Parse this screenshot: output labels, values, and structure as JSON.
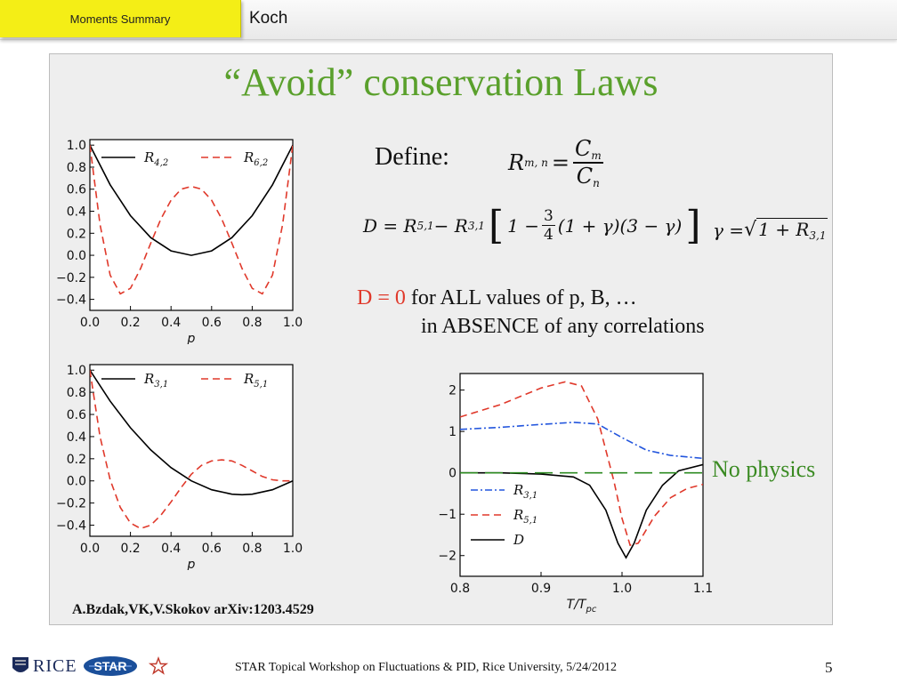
{
  "header": {
    "section_tab": "Moments Summary",
    "author": "Koch"
  },
  "slide": {
    "title": "“Avoid” conservation Laws",
    "define_label": "Define:",
    "ratio_formula": {
      "lhs": "R",
      "lhs_sub": "m, n",
      "num": "C",
      "num_sub": "m",
      "den": "C",
      "den_sub": "n"
    },
    "d_formula": {
      "text_a": "D = R",
      "sub_a": "5,1",
      "text_b": " − R",
      "sub_b": "3,1",
      "text_c": "1 −",
      "frac_num": "3",
      "frac_den": "4",
      "text_d": "(1 + γ)(3 − γ)"
    },
    "gamma_formula": {
      "lhs": "γ = ",
      "inside": "1 + R",
      "inside_sub": "3,1"
    },
    "statement": {
      "red_part": "D = 0",
      "line1_rest": " for ALL values of p, B, …",
      "line2": "in ABSENCE of any correlations"
    },
    "no_physics": "No physics",
    "citation": "A.Bzdak,VK,V.Skokov arXiv:1203.4529"
  },
  "footer": {
    "text": "STAR Topical Workshop on Fluctuations & PID, Rice University, 5/24/2012",
    "page_number": "5",
    "rice_logo": "RICE",
    "star_logo": "STAR"
  },
  "colors": {
    "title_green": "#5aa02c",
    "red_curve": "#e0392b",
    "blue_curve": "#2255dd",
    "green_dash": "#2e8b22",
    "tab_yellow": "#f4ee16"
  },
  "chart_data": [
    {
      "type": "line",
      "xlabel": "p",
      "xlim": [
        0.0,
        1.0
      ],
      "ylim": [
        -0.5,
        1.05
      ],
      "xticks": [
        "0.0",
        "0.2",
        "0.4",
        "0.6",
        "0.8",
        "1.0"
      ],
      "yticks": [
        "1.0",
        "0.8",
        "0.6",
        "0.4",
        "0.2",
        "0.0",
        "−0.2",
        "−0.4"
      ],
      "series": [
        {
          "name": "R",
          "name_sub": "4,2",
          "style": "solid",
          "color": "#000000",
          "x": [
            0.0,
            0.1,
            0.2,
            0.3,
            0.4,
            0.5,
            0.6,
            0.7,
            0.8,
            0.9,
            1.0
          ],
          "y": [
            1.0,
            0.64,
            0.36,
            0.16,
            0.04,
            0.0,
            0.04,
            0.16,
            0.36,
            0.64,
            1.0
          ]
        },
        {
          "name": "R",
          "name_sub": "6,2",
          "style": "dashed",
          "color": "#e0392b",
          "x": [
            0.0,
            0.05,
            0.1,
            0.15,
            0.2,
            0.25,
            0.3,
            0.35,
            0.4,
            0.45,
            0.5,
            0.55,
            0.6,
            0.65,
            0.7,
            0.75,
            0.8,
            0.85,
            0.9,
            0.95,
            1.0
          ],
          "y": [
            1.0,
            0.28,
            -0.18,
            -0.35,
            -0.3,
            -0.12,
            0.11,
            0.33,
            0.5,
            0.6,
            0.625,
            0.6,
            0.5,
            0.33,
            0.11,
            -0.12,
            -0.3,
            -0.35,
            -0.18,
            0.28,
            1.0
          ]
        }
      ]
    },
    {
      "type": "line",
      "xlabel": "p",
      "xlim": [
        0.0,
        1.0
      ],
      "ylim": [
        -0.5,
        1.05
      ],
      "xticks": [
        "0.0",
        "0.2",
        "0.4",
        "0.6",
        "0.8",
        "1.0"
      ],
      "yticks": [
        "1.0",
        "0.8",
        "0.6",
        "0.4",
        "0.2",
        "0.0",
        "−0.2",
        "−0.4"
      ],
      "series": [
        {
          "name": "R",
          "name_sub": "3,1",
          "style": "solid",
          "color": "#000000",
          "x": [
            0.0,
            0.1,
            0.2,
            0.3,
            0.4,
            0.5,
            0.6,
            0.7,
            0.75,
            0.8,
            0.9,
            1.0
          ],
          "y": [
            1.0,
            0.72,
            0.48,
            0.28,
            0.12,
            0.0,
            -0.08,
            -0.12,
            -0.125,
            -0.12,
            -0.08,
            0.0
          ]
        },
        {
          "name": "R",
          "name_sub": "5,1",
          "style": "dashed",
          "color": "#e0392b",
          "x": [
            0.0,
            0.05,
            0.1,
            0.15,
            0.2,
            0.25,
            0.3,
            0.35,
            0.4,
            0.45,
            0.5,
            0.55,
            0.6,
            0.65,
            0.7,
            0.75,
            0.8,
            0.85,
            0.9,
            0.95,
            1.0
          ],
          "y": [
            1.0,
            0.4,
            0.01,
            -0.24,
            -0.38,
            -0.43,
            -0.4,
            -0.31,
            -0.19,
            -0.06,
            0.06,
            0.14,
            0.18,
            0.19,
            0.18,
            0.14,
            0.09,
            0.04,
            0.01,
            0.0,
            0.0
          ]
        }
      ]
    },
    {
      "type": "line",
      "xlabel": "T/T",
      "xlabel_sub": "pc",
      "xlim": [
        0.8,
        1.1
      ],
      "ylim": [
        -2.5,
        2.4
      ],
      "xticks": [
        "0.8",
        "0.9",
        "1.0",
        "1.1"
      ],
      "yticks": [
        "2",
        "1",
        "0",
        "−1",
        "−2"
      ],
      "series": [
        {
          "name": "R",
          "name_sub": "3,1",
          "style": "dashdot",
          "color": "#2255dd",
          "x": [
            0.8,
            0.85,
            0.9,
            0.94,
            0.97,
            1.0,
            1.03,
            1.06,
            1.1
          ],
          "y": [
            1.05,
            1.1,
            1.17,
            1.22,
            1.18,
            0.85,
            0.55,
            0.42,
            0.35
          ]
        },
        {
          "name": "R",
          "name_sub": "5,1",
          "style": "dashed",
          "color": "#e0392b",
          "x": [
            0.8,
            0.85,
            0.9,
            0.93,
            0.95,
            0.97,
            0.99,
            1.0,
            1.01,
            1.02,
            1.04,
            1.06,
            1.08,
            1.1
          ],
          "y": [
            1.35,
            1.65,
            2.05,
            2.2,
            2.1,
            1.3,
            -0.2,
            -1.1,
            -1.75,
            -1.7,
            -1.05,
            -0.6,
            -0.38,
            -0.28
          ]
        },
        {
          "name": "D",
          "name_sub": "",
          "style": "solid",
          "color": "#000000",
          "x": [
            0.8,
            0.85,
            0.9,
            0.94,
            0.96,
            0.98,
            0.995,
            1.005,
            1.015,
            1.03,
            1.05,
            1.07,
            1.1
          ],
          "y": [
            0.0,
            0.0,
            -0.03,
            -0.1,
            -0.3,
            -0.9,
            -1.7,
            -2.05,
            -1.7,
            -0.9,
            -0.3,
            0.05,
            0.2
          ]
        },
        {
          "name": "",
          "name_sub": "",
          "style": "longdash",
          "color": "#2e8b22",
          "x": [
            0.8,
            1.1
          ],
          "y": [
            0.0,
            0.0
          ]
        }
      ]
    }
  ]
}
